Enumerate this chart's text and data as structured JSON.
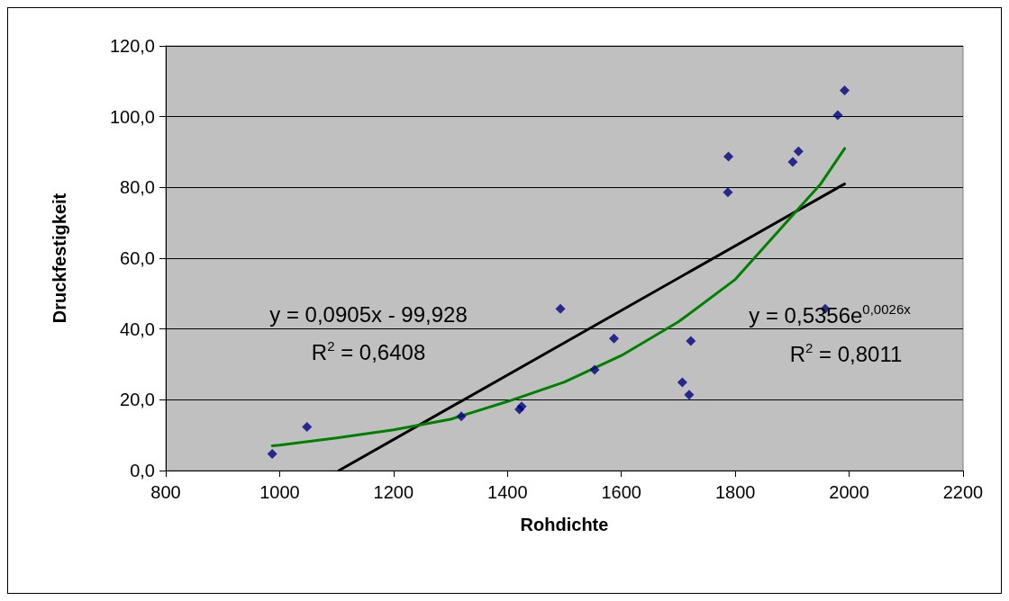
{
  "chart_data": {
    "type": "scatter",
    "xlabel": "Rohdichte",
    "ylabel": "Druckfestigkeit",
    "xlim": [
      800,
      2200
    ],
    "xticks": [
      800,
      1000,
      1200,
      1400,
      1600,
      1800,
      2000,
      2200
    ],
    "ylim": [
      0,
      120
    ],
    "yticks": [
      {
        "value": 0,
        "label": "0,0"
      },
      {
        "value": 20,
        "label": "20,0"
      },
      {
        "value": 40,
        "label": "40,0"
      },
      {
        "value": 60,
        "label": "60,0"
      },
      {
        "value": 80,
        "label": "80,0"
      },
      {
        "value": 100,
        "label": "100,0"
      },
      {
        "value": 120,
        "label": "120,0"
      }
    ],
    "grid": "y",
    "marker": "diamond",
    "series": [
      {
        "color": "#000080",
        "x": [
          987,
          1048,
          1319,
          1421,
          1425,
          1493,
          1553,
          1587,
          1707,
          1719,
          1722,
          1787,
          1788,
          1901,
          1911,
          1958,
          1980,
          1992
        ],
        "values": [
          4.7,
          12.3,
          15.3,
          17.3,
          18.1,
          45.7,
          28.5,
          37.3,
          24.9,
          21.4,
          36.6,
          78.6,
          88.7,
          87.2,
          90.2,
          45.7,
          100.4,
          107.4
        ]
      },
      {
        "type": "line",
        "color": "#000000",
        "marker": "none",
        "x": [
          1104,
          1992
        ],
        "values": [
          0,
          81
        ]
      },
      {
        "type": "line",
        "color": "#008000",
        "marker": "none",
        "x": [
          987,
          1000,
          1100,
          1200,
          1300,
          1400,
          1500,
          1600,
          1700,
          1800,
          1900,
          1950,
          1992
        ],
        "values": [
          7,
          7.2,
          9.2,
          11.5,
          14.5,
          19.5,
          25,
          32.5,
          42,
          54,
          72,
          81,
          91
        ]
      }
    ],
    "annotations": [
      "y = 0,0905x - 99,928",
      "R$^{2}$ = 0,6408",
      "y = 0,5356e$^{0,0026x}$",
      "R$^{2}$ = 0,8011"
    ]
  }
}
